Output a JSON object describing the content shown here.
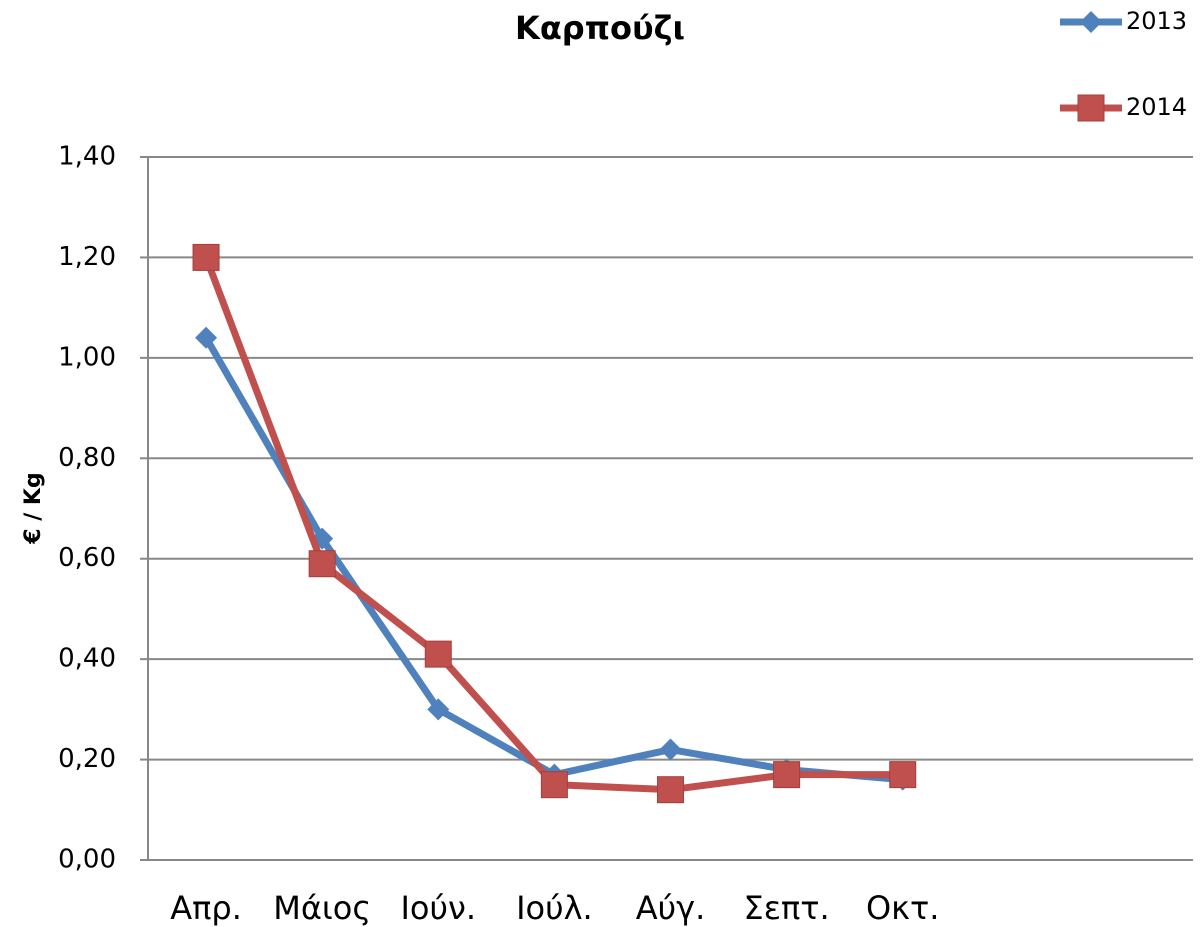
{
  "chart_data": {
    "type": "line",
    "title": "Καρπούζι",
    "y_label": "€ / Kg",
    "categories": [
      "Απρ.",
      "Μάιος",
      "Ιούν.",
      "Ιούλ.",
      "Αύγ.",
      "Σεπτ.",
      "Οκτ.",
      null,
      null
    ],
    "series": [
      {
        "name": "2013",
        "color": "#4f81bd",
        "marker": "diamond",
        "values": [
          1.04,
          0.64,
          0.3,
          0.17,
          0.22,
          0.18,
          0.16,
          null,
          null
        ]
      },
      {
        "name": "2014",
        "color": "#c0504d",
        "marker": "square",
        "values": [
          1.2,
          0.59,
          0.41,
          0.15,
          0.14,
          0.17,
          0.17,
          null,
          null
        ]
      }
    ],
    "ylim": [
      0,
      1.4
    ],
    "yticks": [
      {
        "value": 0,
        "label": "0,00"
      },
      {
        "value": 0.2,
        "label": "0,20"
      },
      {
        "value": 0.4,
        "label": "0,40"
      },
      {
        "value": 0.6,
        "label": "0,60"
      },
      {
        "value": 0.8,
        "label": "0,80"
      },
      {
        "value": 1,
        "label": "1,00"
      },
      {
        "value": 1.2,
        "label": "1,20"
      },
      {
        "value": 1.4,
        "label": "1,40"
      }
    ],
    "grid": true,
    "legend": "top-right"
  }
}
